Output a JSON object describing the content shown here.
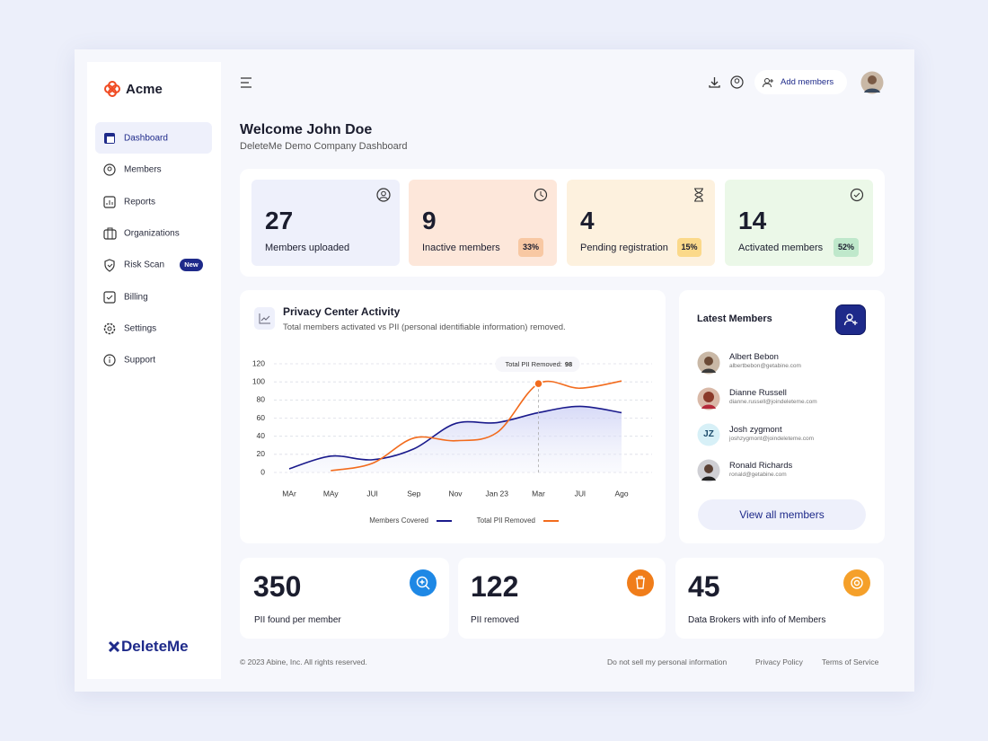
{
  "sidebar": {
    "brand": "Acme",
    "nav": [
      "Dashboard",
      "Members",
      "Reports",
      "Organizations",
      "Risk Scan",
      "Billing",
      "Settings",
      "Support"
    ],
    "badge": "New",
    "footer_logo": "DeleteMe"
  },
  "header": {
    "button": "Add members",
    "title": "Welcome John Doe",
    "subtitle": "DeleteMe Demo Company Dashboard"
  },
  "stats": [
    {
      "value": 27,
      "label": "Members uploaded"
    },
    {
      "value": 9,
      "label": "Inactive members",
      "badge": "33%"
    },
    {
      "value": 4,
      "label": "Pending registration",
      "badge": "15%"
    },
    {
      "value": 14,
      "label": "Activated members",
      "badge": "52%"
    }
  ],
  "chart_data": {
    "type": "line",
    "title": "Privacy Center Activity",
    "subtitle": "Total members activated vs PII (personal identifiable information) removed.",
    "categories": [
      "MAr",
      "MAy",
      "JUl",
      "Sep",
      "Nov",
      "Jan 23",
      "Mar",
      "JUl",
      "Ago"
    ],
    "series": [
      {
        "name": "Members Covered",
        "color": "#1a1a8c",
        "values": [
          4,
          18,
          14,
          26,
          54,
          55,
          66,
          73,
          66
        ]
      },
      {
        "name": "Total PII Removed",
        "color": "#f26b1d",
        "values": [
          null,
          2,
          10,
          38,
          35,
          44,
          98,
          93,
          101
        ]
      }
    ],
    "ylim": [
      0,
      120
    ],
    "yticks": [
      0,
      20,
      40,
      60,
      80,
      100,
      120
    ],
    "grid": true,
    "tooltip_label": "Total PII Removed:"
  },
  "latest_members": {
    "title": "Latest Members",
    "members": [
      {
        "name": "Albert Bebon",
        "email": "albertbebon@getabine.com"
      },
      {
        "name": "Dianne Russell",
        "email": "dianne.russell@joindeleteme.com"
      },
      {
        "name": "Josh zygmont",
        "email": "joshzygmont@joindeleteme.com",
        "initials": "JZ"
      },
      {
        "name": "Ronald Richards",
        "email": "ronald@getabine.com"
      }
    ],
    "button": "View all members"
  },
  "summary": [
    {
      "value": 350,
      "label": "PII found per member"
    },
    {
      "value": 122,
      "label": "PII removed"
    },
    {
      "value": 45,
      "label": "Data Brokers with info of Members"
    }
  ],
  "footer": {
    "copyright": "© 2023 Abine, Inc. All rights reserved.",
    "links": [
      "Do not sell my personal information",
      "Privacy Policy",
      "Terms of Service"
    ]
  }
}
